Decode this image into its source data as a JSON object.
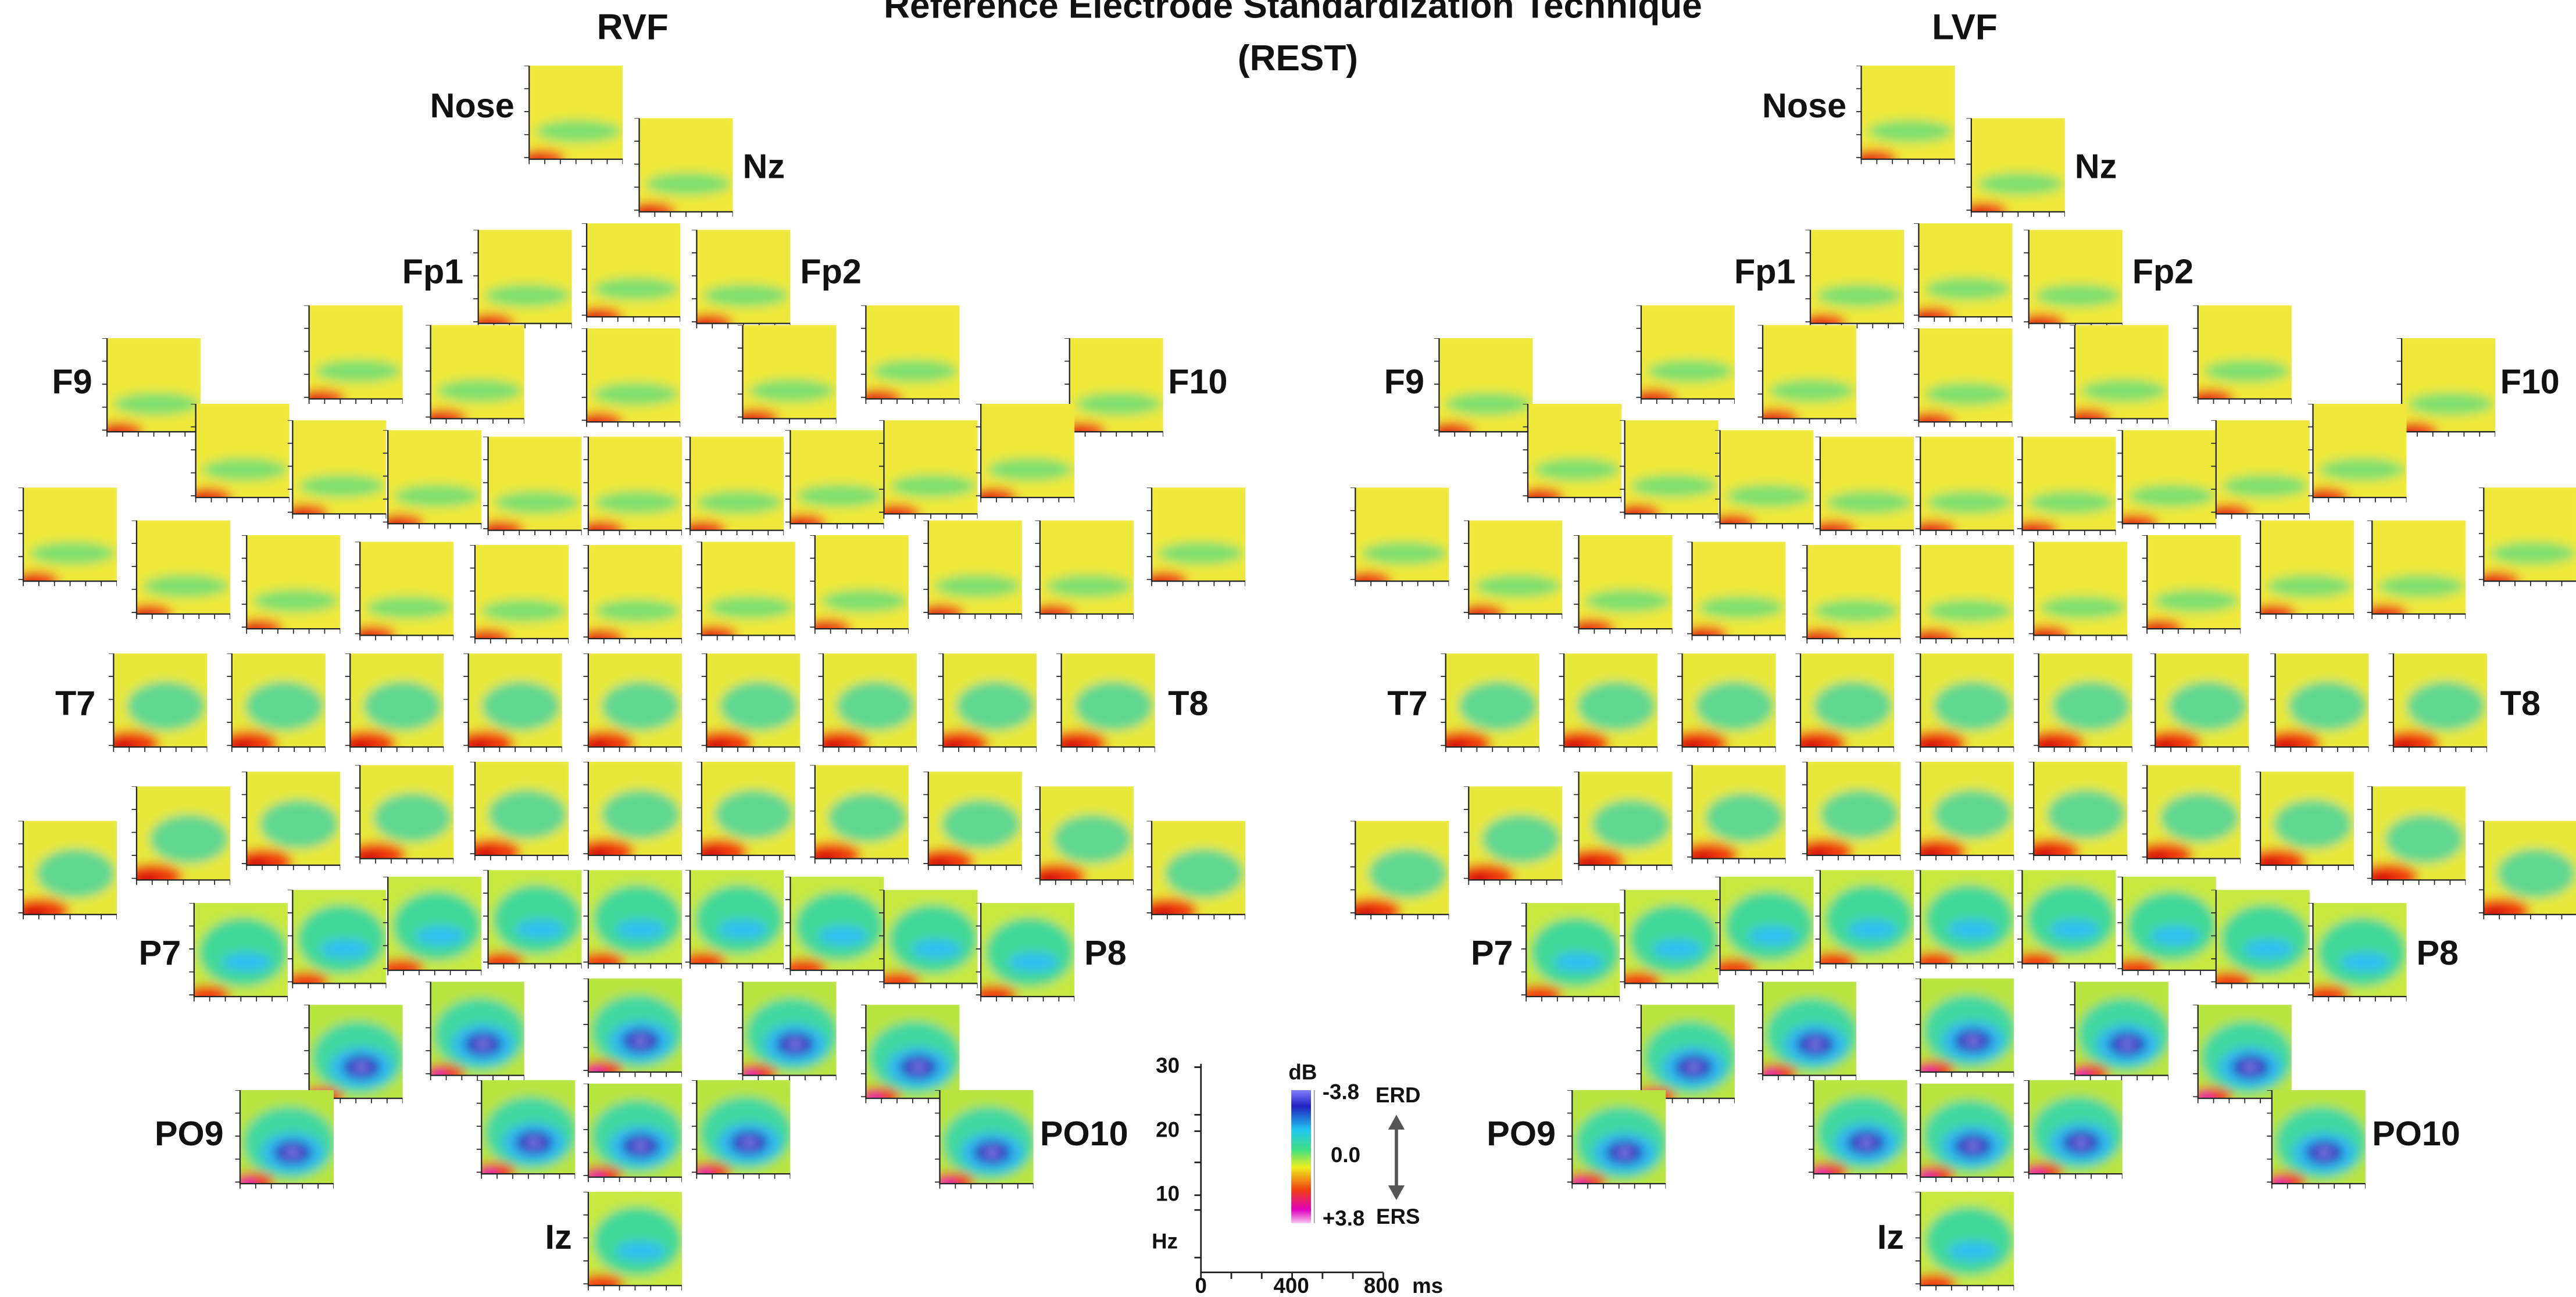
{
  "title": [
    "Reference Electrode Standardization Technique",
    "(REST)"
  ],
  "panels": [
    {
      "label": "RVF",
      "electrodes": [
        "Nose",
        "Nz",
        "Fp1",
        "Fp2",
        "F9",
        "F10",
        "T7",
        "T8",
        "P7",
        "P8",
        "PO9",
        "PO10",
        "Iz"
      ]
    },
    {
      "label": "LVF",
      "electrodes": [
        "Nose",
        "Nz",
        "Fp1",
        "Fp2",
        "F9",
        "F10",
        "T7",
        "T8",
        "P7",
        "P8",
        "PO9",
        "PO10",
        "Iz"
      ]
    }
  ],
  "legend": {
    "y_ticks": [
      30,
      20,
      10
    ],
    "y_unit": "Hz",
    "x_ticks": [
      0,
      400,
      800
    ],
    "x_unit": "ms",
    "colorbar": {
      "unit": "dB",
      "ticks": [
        {
          "value": -3.8,
          "label": "-3.8"
        },
        {
          "value": 0,
          "label": "0.0"
        },
        {
          "value": 3.8,
          "label": "+3.8"
        }
      ],
      "top": "ERD",
      "bottom": "ERS"
    }
  }
}
